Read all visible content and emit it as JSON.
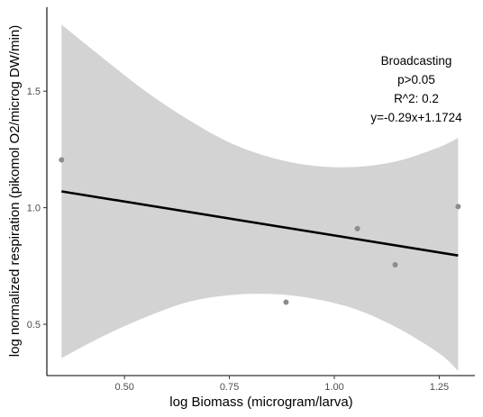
{
  "chart_data": {
    "type": "scatter",
    "xlabel": "log Biomass (microgram/larva)",
    "ylabel": "log normalized respiration (pikomol O2/microg DW/min)",
    "xlim": [
      0.315,
      1.335
    ],
    "ylim": [
      0.28,
      1.86
    ],
    "x_ticks": [
      0.5,
      0.75,
      1.0,
      1.25
    ],
    "x_tick_labels": [
      "0.50",
      "0.75",
      "1.00",
      "1.25"
    ],
    "y_ticks": [
      0.5,
      1.0,
      1.5
    ],
    "y_tick_labels": [
      "0.5",
      "1.0",
      "1.5"
    ],
    "grid": false,
    "points": [
      {
        "x": 0.35,
        "y": 1.205
      },
      {
        "x": 0.885,
        "y": 0.595
      },
      {
        "x": 1.055,
        "y": 0.91
      },
      {
        "x": 1.145,
        "y": 0.755
      },
      {
        "x": 1.295,
        "y": 1.005
      }
    ],
    "fit_line": {
      "x": [
        0.35,
        1.295
      ],
      "y": [
        1.07,
        0.795
      ]
    },
    "confidence_band": {
      "x": [
        0.35,
        0.45,
        0.55,
        0.65,
        0.75,
        0.85,
        0.95,
        1.05,
        1.15,
        1.25,
        1.295
      ],
      "upper": [
        1.785,
        1.64,
        1.5,
        1.38,
        1.28,
        1.215,
        1.18,
        1.175,
        1.2,
        1.26,
        1.3
      ],
      "lower": [
        0.355,
        0.45,
        0.53,
        0.595,
        0.625,
        0.63,
        0.61,
        0.565,
        0.485,
        0.375,
        0.3
      ]
    },
    "annotation": [
      "Broadcasting",
      "p>0.05",
      "R^2: 0.2",
      "y=-0.29x+1.1724"
    ],
    "colors": {
      "points": "#8c8c8c",
      "line": "#000000",
      "band": "#d3d3d3",
      "axis": "#000000",
      "tick_label": "#4d4d4d"
    }
  }
}
